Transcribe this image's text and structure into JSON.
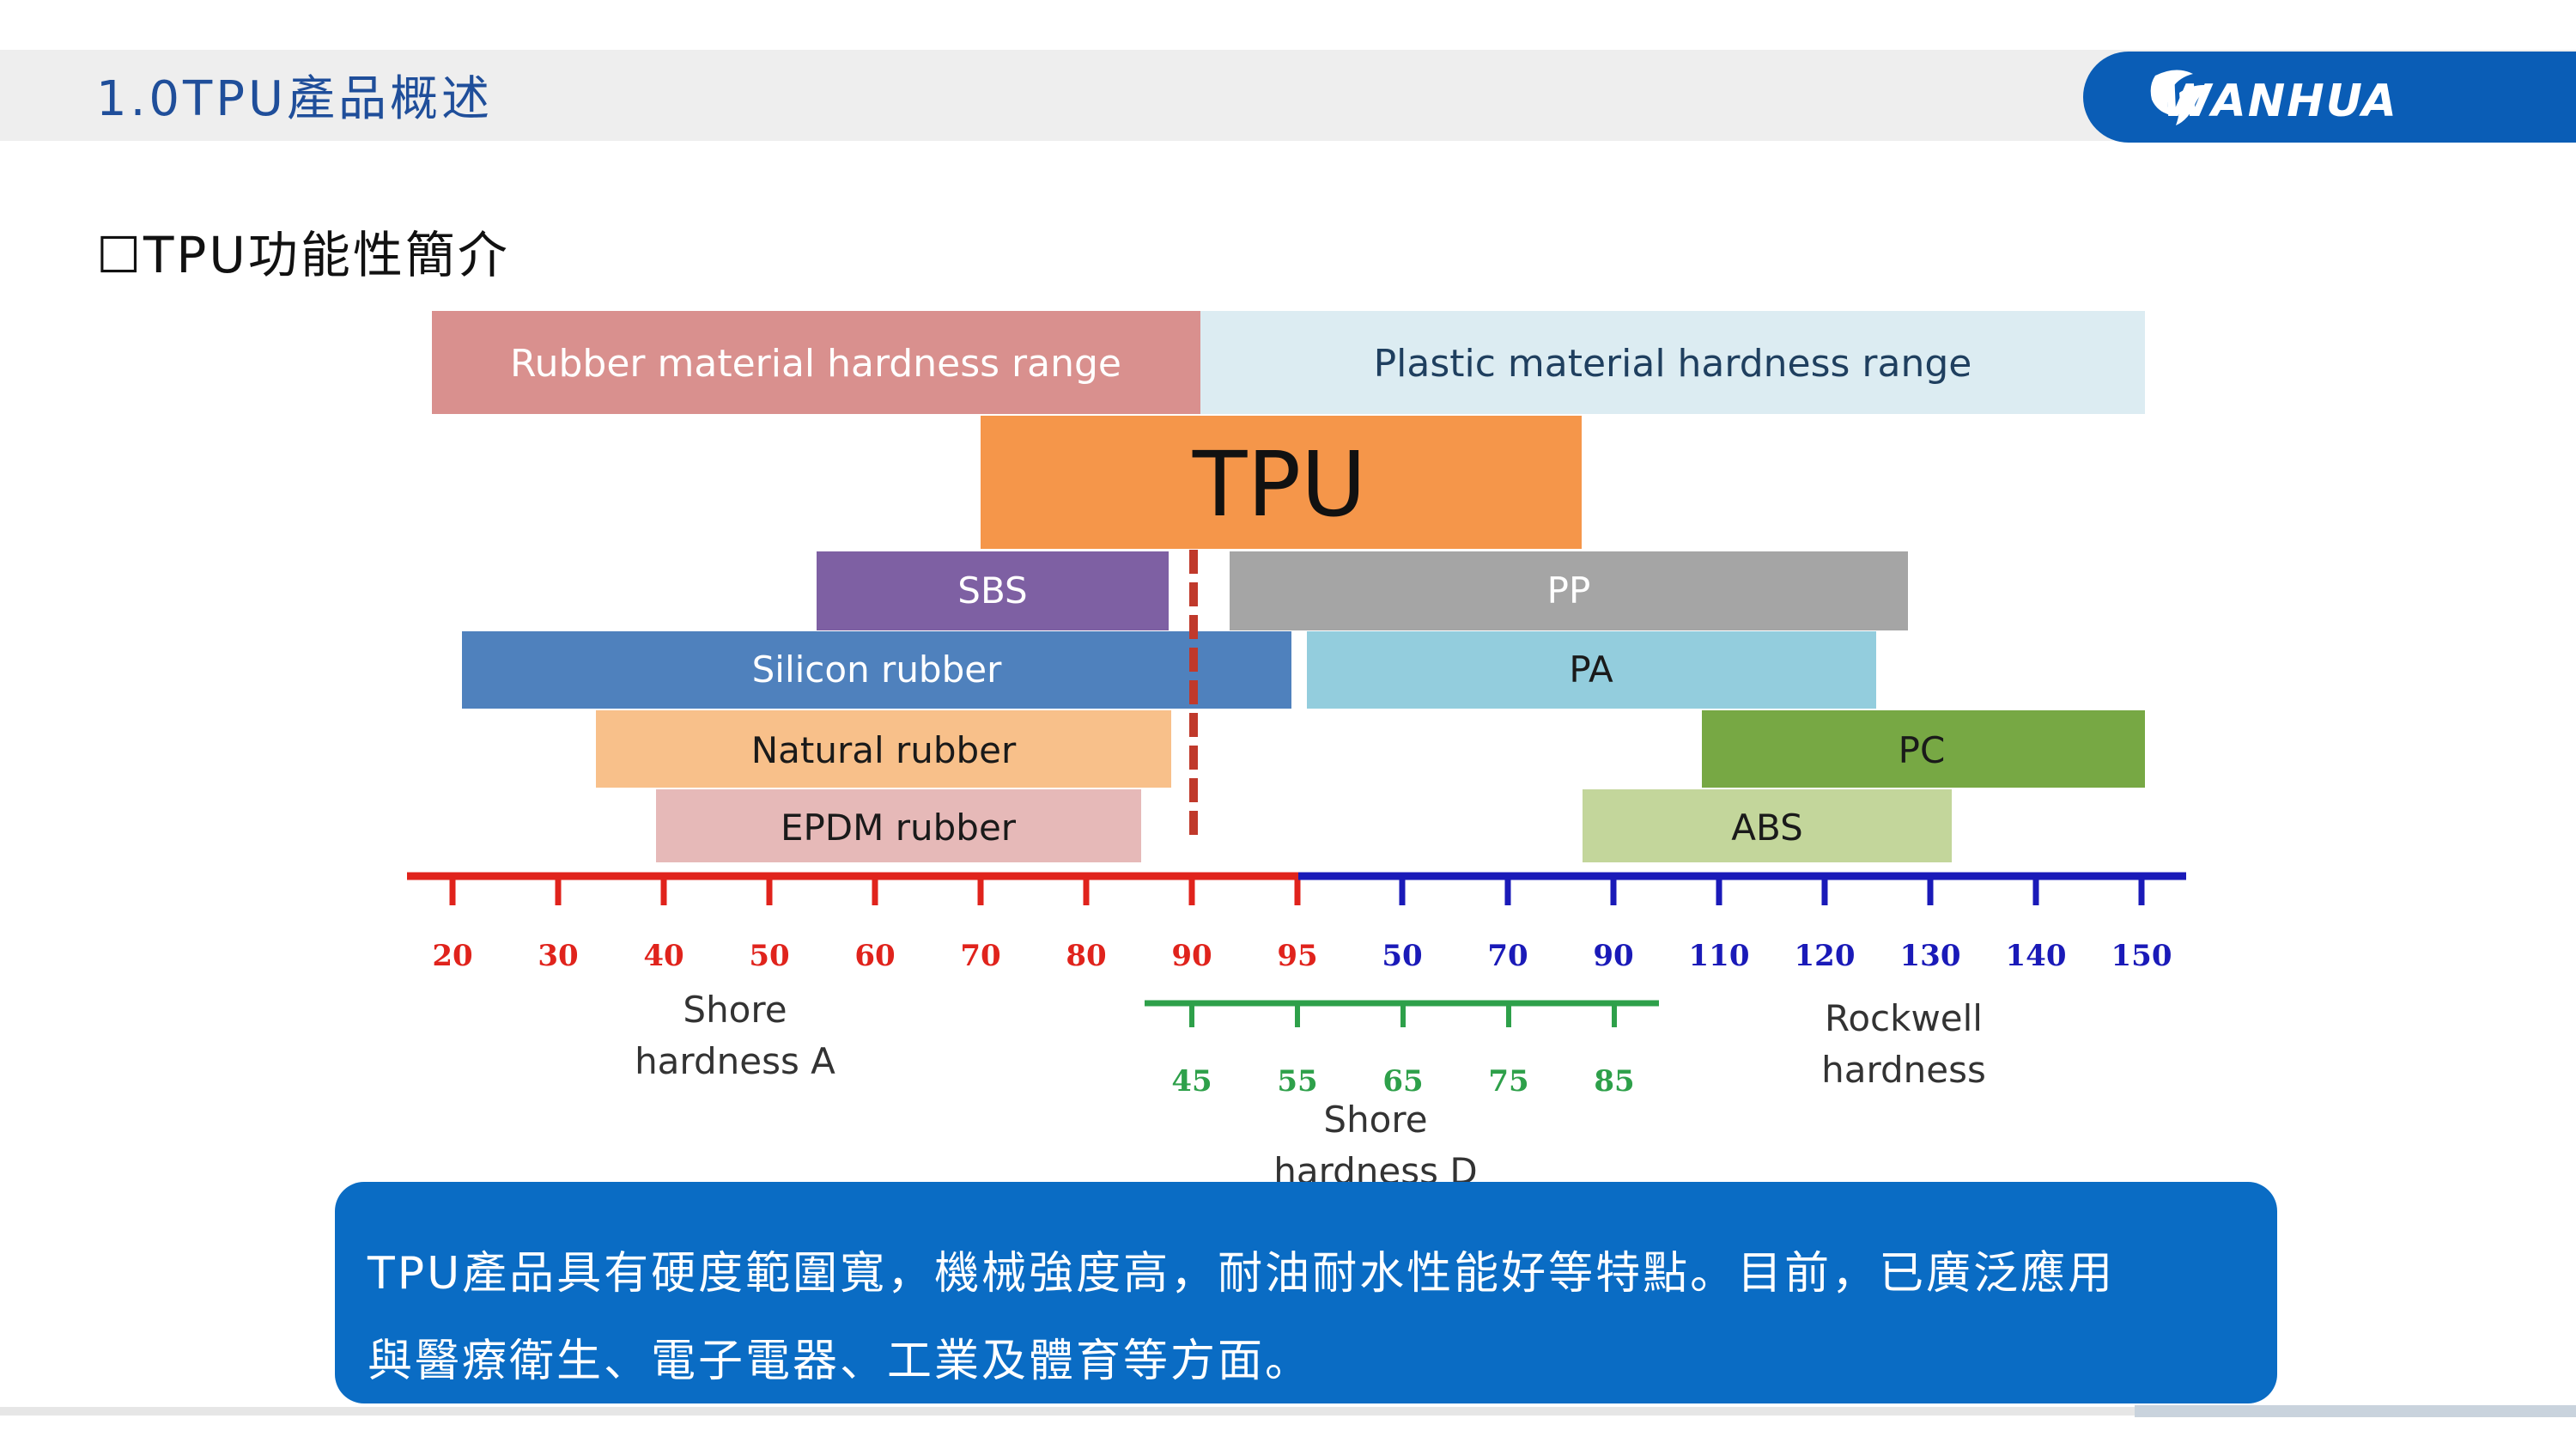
{
  "header": {
    "title": "1.0TPU產品概述",
    "logo_text": "WANHUA",
    "logo_color": "#0a5db6"
  },
  "section_title": "☐TPU功能性簡介",
  "diagram": {
    "range_headers": [
      {
        "label": "Rubber material hardness range",
        "color": "#d9908e",
        "text_color": "#ffffff"
      },
      {
        "label": "Plastic material hardness range",
        "color": "#dcecf2",
        "text_color": "#1f3f5f"
      }
    ],
    "tpu": {
      "label": "TPU",
      "color": "#f5964a",
      "text_color": "#111111"
    },
    "materials": [
      {
        "label": "SBS",
        "color": "#7e60a3",
        "text_color": "#ffffff"
      },
      {
        "label": "PP",
        "color": "#a5a5a5",
        "text_color": "#ffffff"
      },
      {
        "label": "Silicon rubber",
        "color": "#4f81bd",
        "text_color": "#ffffff"
      },
      {
        "label": "PA",
        "color": "#93cddd",
        "text_color": "#1a1a1a"
      },
      {
        "label": "Natural rubber",
        "color": "#f8c08a",
        "text_color": "#1a1a1a"
      },
      {
        "label": "PC",
        "color": "#77a844",
        "text_color": "#1a1a1a"
      },
      {
        "label": "EPDM rubber",
        "color": "#e6b9b8",
        "text_color": "#1a1a1a"
      },
      {
        "label": "ABS",
        "color": "#c3d69b",
        "text_color": "#1a1a1a"
      }
    ],
    "shore_a": {
      "ticks": [
        "20",
        "30",
        "40",
        "50",
        "60",
        "70",
        "80",
        "90",
        "95"
      ],
      "label_line1": "Shore",
      "label_line2": "hardness A",
      "color": "#e0231c"
    },
    "rockwell": {
      "ticks": [
        "50",
        "70",
        "90",
        "110",
        "120",
        "130",
        "140",
        "150"
      ],
      "label_line1": "Rockwell",
      "label_line2": "hardness",
      "color": "#1a1ab8"
    },
    "shore_d": {
      "ticks": [
        "45",
        "55",
        "65",
        "75",
        "85"
      ],
      "label_line1": "Shore",
      "label_line2": "hardness D",
      "color": "#2ea04a"
    },
    "divider_color": "#c0392b"
  },
  "info": {
    "line1": "TPU產品具有硬度範圍寬，機械強度高，耐油耐水性能好等特點。目前，已廣泛應用",
    "line2": "與醫療衛生、電子電器、工業及體育等方面。",
    "background": "#0a6cc4"
  }
}
